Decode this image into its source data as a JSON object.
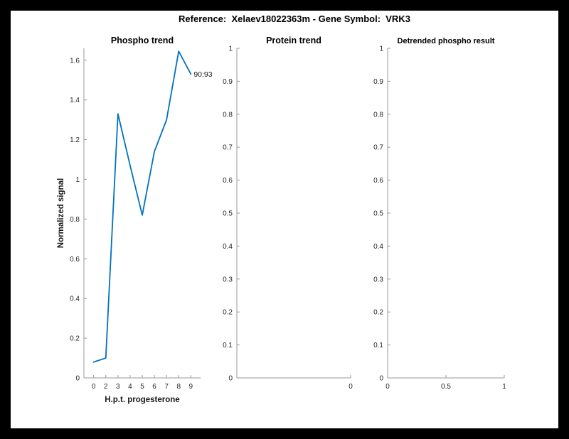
{
  "figure": {
    "suptitle": "Reference:  Xelaev18022363m - Gene Symbol:  VRK3",
    "background": "#000000",
    "canvas_color": "#ffffff",
    "axis_line_color": "#999999",
    "tick_label_color": "#262626"
  },
  "chart_data": [
    {
      "type": "line",
      "title": "Phospho trend",
      "xlabel": "H.p.t. progesterone",
      "ylabel": "Normalized signal",
      "x_tick_labels": [
        "0",
        "2",
        "3",
        "4",
        "5",
        "6",
        "7",
        "8",
        "9"
      ],
      "x_positions": [
        1,
        2,
        3,
        4,
        5,
        6,
        7,
        8,
        9
      ],
      "xlim": [
        0.2,
        9.8
      ],
      "values": [
        0.08,
        0.1,
        1.33,
        1.07,
        0.82,
        1.14,
        1.3,
        1.645,
        1.53
      ],
      "ylim": [
        0,
        1.66
      ],
      "y_ticks": [
        0,
        0.2,
        0.4,
        0.6,
        0.8,
        1,
        1.2,
        1.4,
        1.6
      ],
      "y_tick_labels": [
        "0",
        "0.2",
        "0.4",
        "0.6",
        "0.8",
        "1",
        "1.2",
        "1.4",
        "1.6"
      ],
      "annotation": "90;93",
      "line_color": "#0072BD",
      "grid": false,
      "legend": null
    },
    {
      "type": "line",
      "title": "Protein trend",
      "xlabel": "",
      "ylabel": "",
      "xlim": [
        0,
        1
      ],
      "x_ticks": [
        1
      ],
      "x_tick_labels": [
        "0"
      ],
      "values": [],
      "ylim": [
        0,
        1
      ],
      "y_ticks": [
        0,
        0.1,
        0.2,
        0.3,
        0.4,
        0.5,
        0.6,
        0.7,
        0.8,
        0.9,
        1
      ],
      "y_tick_labels": [
        "0",
        "0.1",
        "0.2",
        "0.3",
        "0.4",
        "0.5",
        "0.6",
        "0.7",
        "0.8",
        "0.9",
        "1"
      ],
      "annotation": null,
      "line_color": "#0072BD",
      "grid": false,
      "legend": null
    },
    {
      "type": "line",
      "title": "Detrended phospho result",
      "xlabel": "",
      "ylabel": "",
      "xlim": [
        0,
        1
      ],
      "x_ticks": [
        0,
        0.5,
        1
      ],
      "x_tick_labels": [
        "0",
        "0.5",
        "1"
      ],
      "values": [],
      "ylim": [
        0,
        1
      ],
      "y_ticks": [
        0,
        0.1,
        0.2,
        0.3,
        0.4,
        0.5,
        0.6,
        0.7,
        0.8,
        0.9,
        1
      ],
      "y_tick_labels": [
        "0",
        "0.1",
        "0.2",
        "0.3",
        "0.4",
        "0.5",
        "0.6",
        "0.7",
        "0.8",
        "0.9",
        "1"
      ],
      "annotation": null,
      "line_color": "#0072BD",
      "grid": false,
      "legend": null
    }
  ]
}
